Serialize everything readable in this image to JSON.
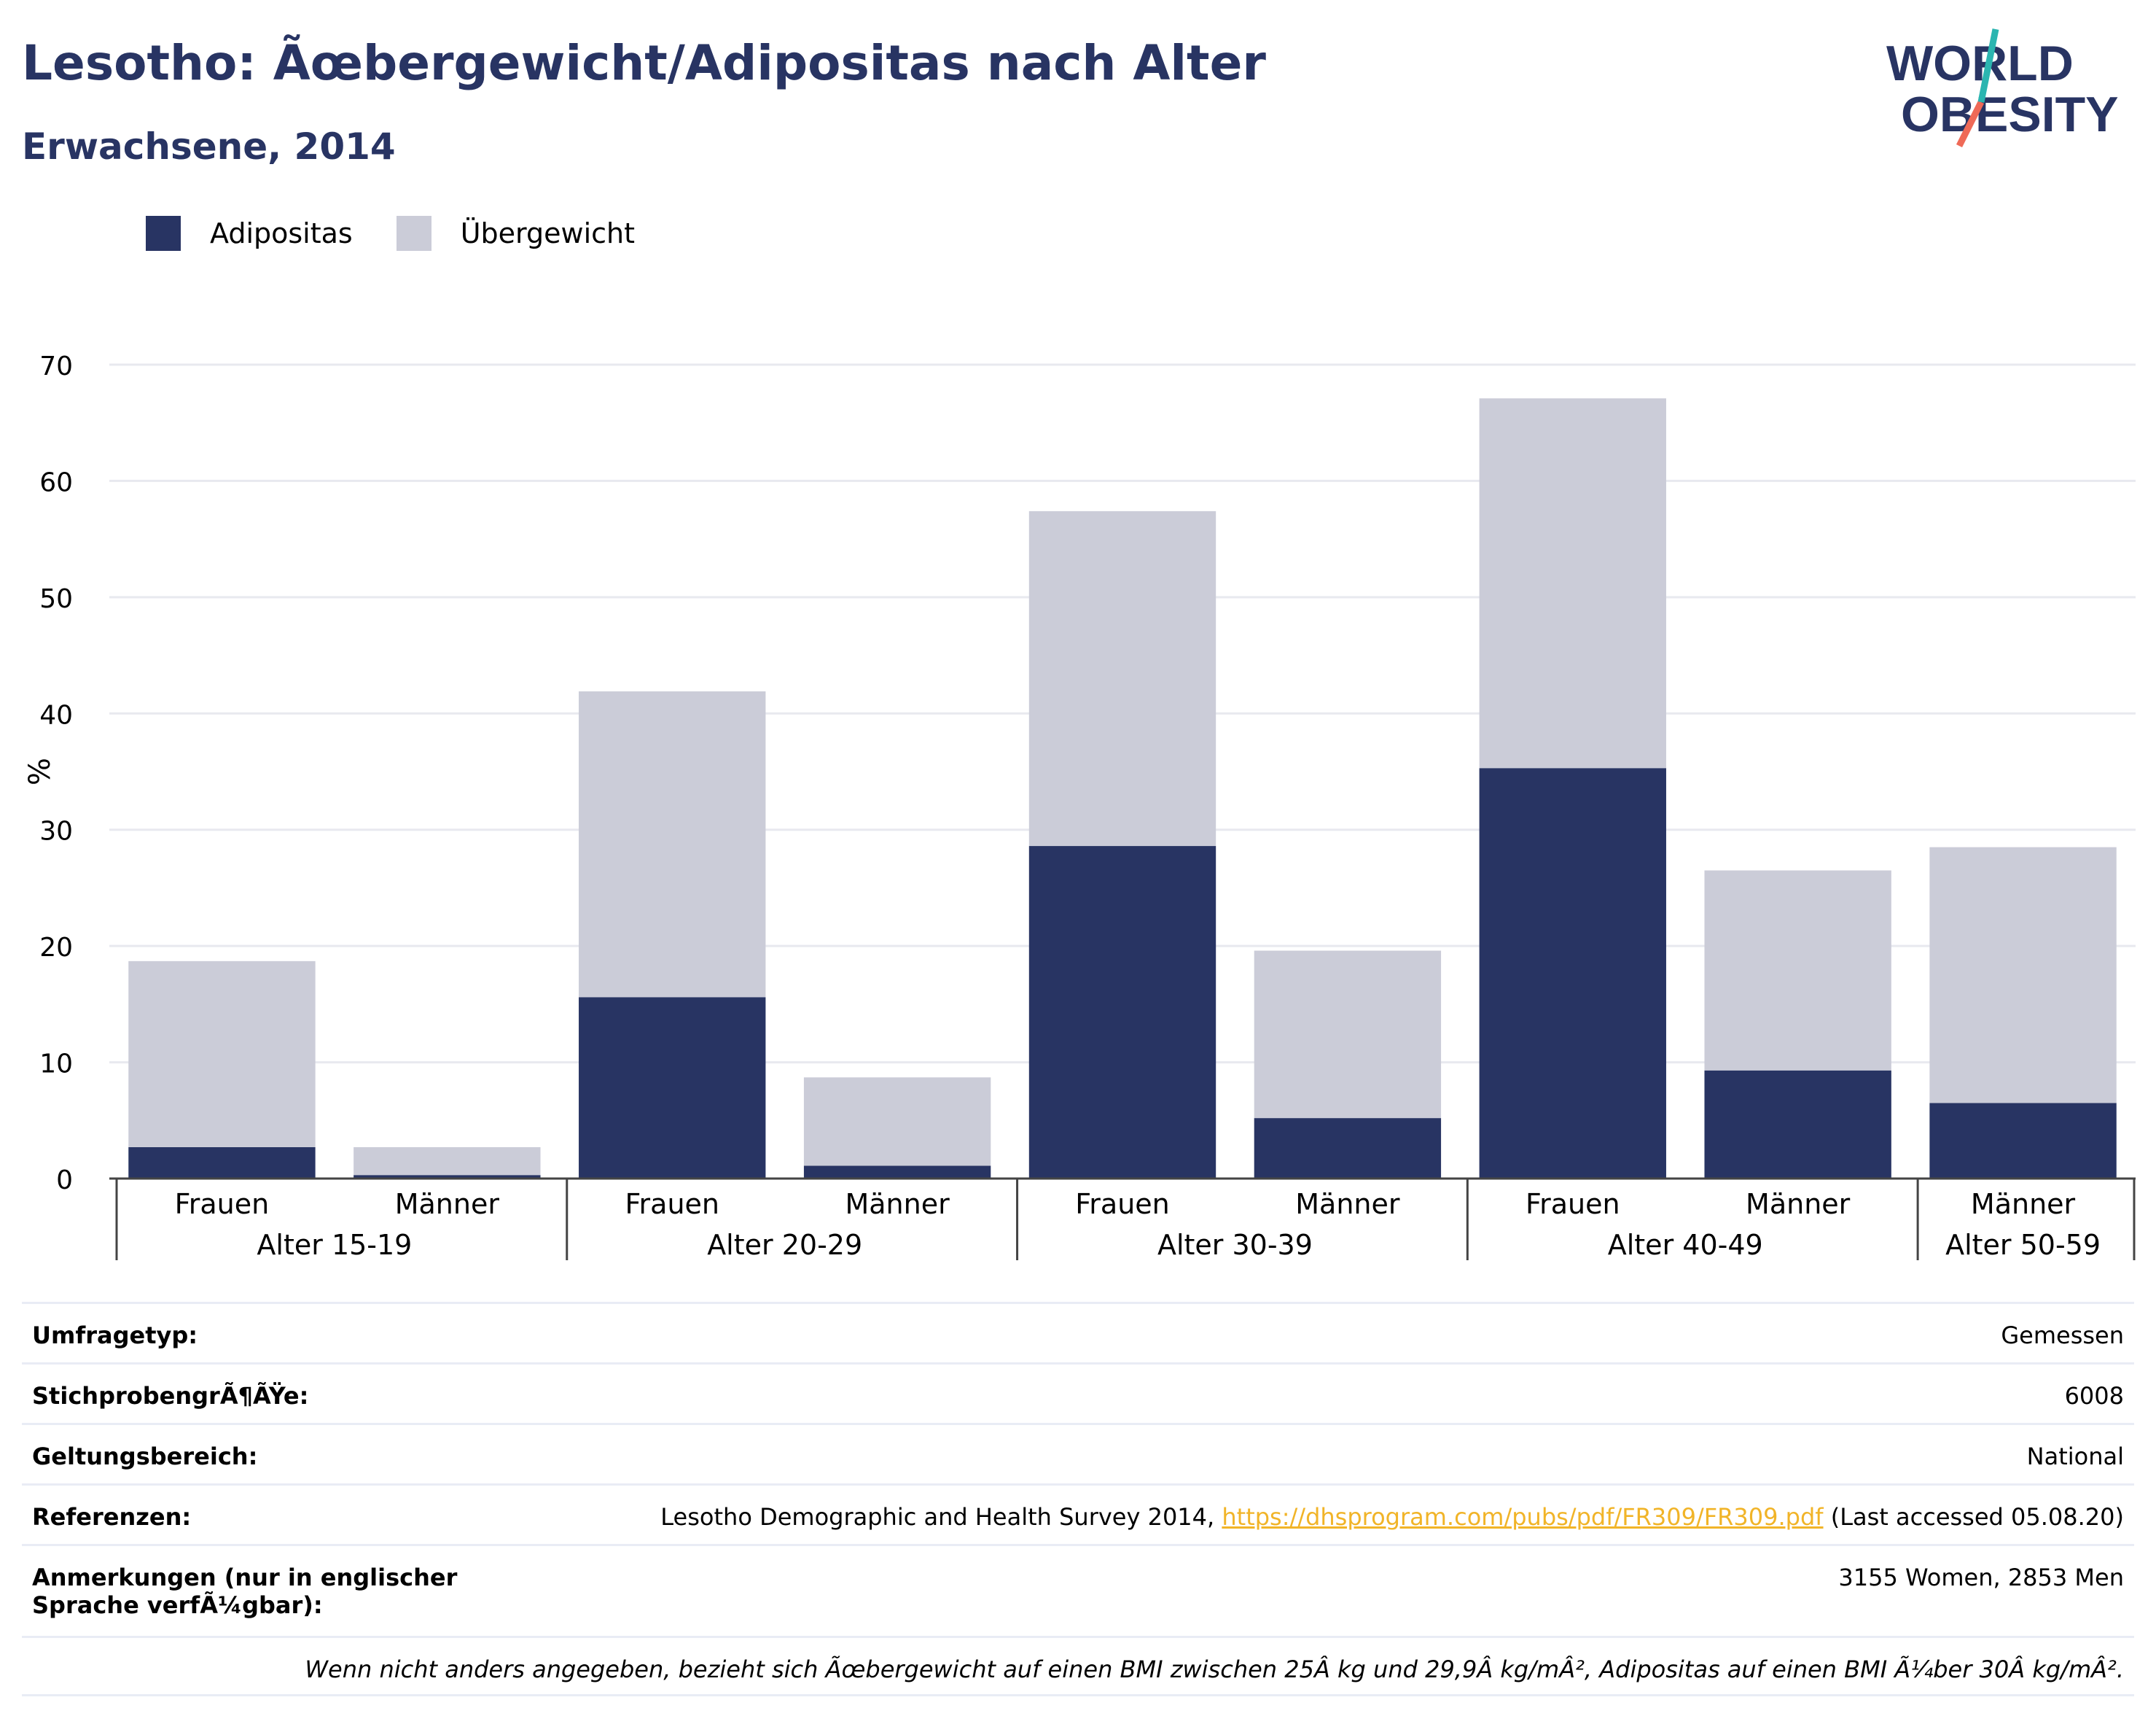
{
  "header": {
    "title": "Lesotho: Ãœbergewicht/Adipositas nach Alter",
    "subtitle": "Erwachsene, 2014",
    "logo_line1": "WORLD",
    "logo_line2": "OBESITY"
  },
  "legend": {
    "items": [
      {
        "label": "Adipositas",
        "color": "#283463"
      },
      {
        "label": "Übergewicht",
        "color": "#cbccd8"
      }
    ]
  },
  "chart_data": {
    "type": "bar",
    "stacked": true,
    "ylabel": "%",
    "ylim": [
      0,
      70
    ],
    "yticks": [
      0,
      10,
      20,
      30,
      40,
      50,
      60,
      70
    ],
    "grid": true,
    "legend_position": "top-left",
    "groups": [
      {
        "label": "Alter 15-19",
        "categories": [
          "Frauen",
          "Männer"
        ]
      },
      {
        "label": "Alter 20-29",
        "categories": [
          "Frauen",
          "Männer"
        ]
      },
      {
        "label": "Alter 30-39",
        "categories": [
          "Frauen",
          "Männer"
        ]
      },
      {
        "label": "Alter 40-49",
        "categories": [
          "Frauen",
          "Männer"
        ]
      },
      {
        "label": "Alter 50-59",
        "categories": [
          "Männer"
        ]
      }
    ],
    "series": [
      {
        "name": "Adipositas",
        "color": "#283463",
        "values": [
          2.7,
          0.3,
          15.6,
          1.1,
          28.6,
          5.2,
          35.3,
          9.3,
          6.5
        ]
      },
      {
        "name": "Übergewicht",
        "color": "#cbccd8",
        "values": [
          16.0,
          2.4,
          26.3,
          7.6,
          28.8,
          14.4,
          31.8,
          17.2,
          22.0
        ]
      }
    ]
  },
  "info": {
    "rows": [
      {
        "label": "Umfragetyp:",
        "value": "Gemessen"
      },
      {
        "label": "StichprobengrÃ¶ÃŸe:",
        "value": "6008"
      },
      {
        "label": "Geltungsbereich:",
        "value": "National"
      },
      {
        "label": "Referenzen:",
        "value_prefix": "Lesotho Demographic and Health Survey 2014, ",
        "link": "https://dhsprogram.com/pubs/pdf/FR309/FR309.pdf",
        "value_suffix": " (Last accessed 05.08.20)"
      },
      {
        "label": "Anmerkungen (nur in englischer Sprache verfÃ¼gbar):",
        "value": "3155 Women, 2853 Men"
      }
    ],
    "note": "Wenn nicht anders angegeben, bezieht sich Ãœbergewicht auf einen BMI zwischen 25Â kg und 29,9Â kg/mÂ², Adipositas auf einen BMI Ã¼ber 30Â kg/mÂ²."
  }
}
